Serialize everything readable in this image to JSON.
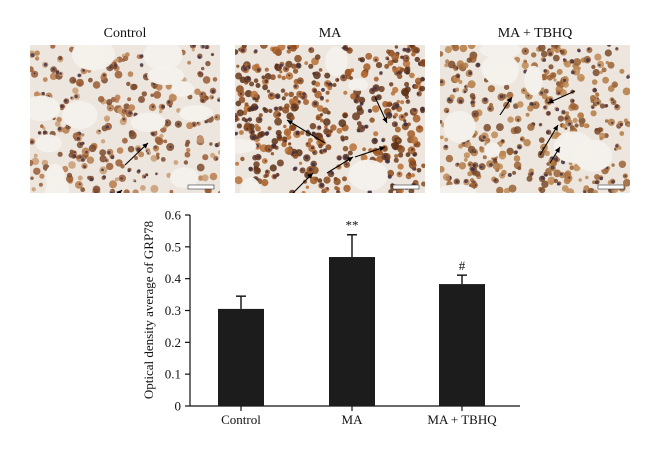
{
  "panels": [
    {
      "title": "Control",
      "stain": "light",
      "arrows": [
        [
          95,
          120,
          118,
          98
        ],
        [
          68,
          168,
          92,
          145
        ]
      ]
    },
    {
      "title": "MA",
      "stain": "heavy",
      "arrows": [
        [
          90,
          98,
          52,
          75
        ],
        [
          140,
          52,
          152,
          78
        ],
        [
          92,
          128,
          118,
          112
        ],
        [
          58,
          148,
          78,
          128
        ],
        [
          120,
          112,
          150,
          102
        ]
      ]
    },
    {
      "title": "MA + TBHQ",
      "stain": "medium",
      "arrows": [
        [
          135,
          46,
          108,
          58
        ],
        [
          100,
          110,
          118,
          80
        ],
        [
          110,
          118,
          120,
          102
        ],
        [
          60,
          70,
          72,
          52
        ]
      ]
    }
  ],
  "colors": {
    "bar": "#1c1c1c",
    "bg_tissue": "#ece6de",
    "stain_dark": "#6b3a1e",
    "stain_mid": "#a8642f",
    "nucleus": "#3d2f4a"
  },
  "chart_data": {
    "type": "bar",
    "categories": [
      "Control",
      "MA",
      "MA + TBHQ"
    ],
    "values": [
      0.305,
      0.468,
      0.383
    ],
    "errors": [
      0.04,
      0.07,
      0.028
    ],
    "annotations": [
      "",
      "**",
      "#"
    ],
    "ylabel": "Optical density average of GRP78",
    "ylim": [
      0,
      0.6
    ],
    "yticks": [
      "0",
      "0.1",
      "0.2",
      "0.3",
      "0.4",
      "0.5",
      "0.6"
    ],
    "grid": false
  }
}
